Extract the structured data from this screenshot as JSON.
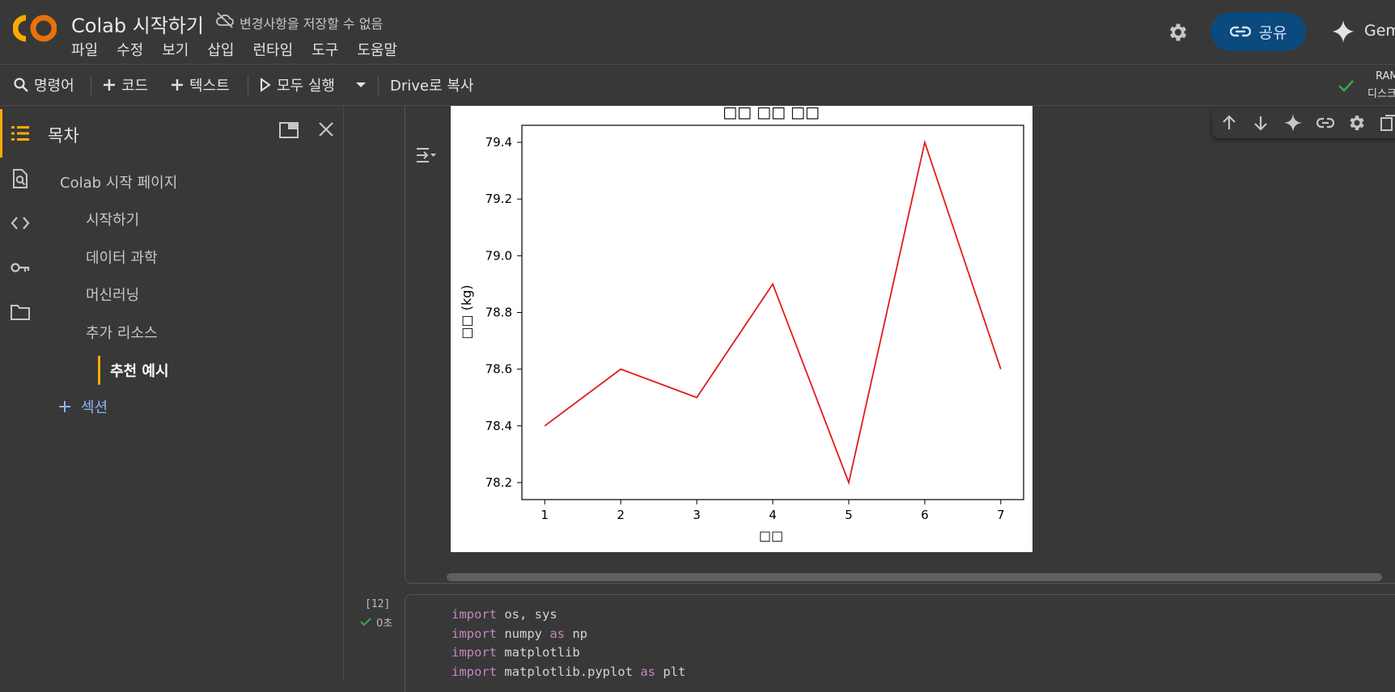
{
  "header": {
    "logo_text": "CO",
    "title": "Colab 시작하기",
    "save_status": "변경사항을 저장할 수 없음",
    "menu": [
      "파일",
      "수정",
      "보기",
      "삽입",
      "런타임",
      "도구",
      "도움말"
    ],
    "share_label": "공유",
    "gemini_label": "Gem"
  },
  "toolbar": {
    "command_label": "명령어",
    "add_code_label": "코드",
    "add_text_label": "텍스트",
    "run_all_label": "모두 실행",
    "copy_drive_label": "Drive로 복사",
    "ram_label": "RAM",
    "disk_label": "디스크"
  },
  "sidebar": {
    "title": "목차",
    "items": [
      {
        "label": "Colab 시작 페이지",
        "level": 1
      },
      {
        "label": "시작하기",
        "level": 2
      },
      {
        "label": "데이터 과학",
        "level": 2
      },
      {
        "label": "머신러닝",
        "level": 2
      },
      {
        "label": "추가 리소스",
        "level": 2
      },
      {
        "label": "추천 예시",
        "level": 3,
        "active": true
      }
    ],
    "add_section_label": "섹션"
  },
  "cells": {
    "code_exec_count": "[12]",
    "code_exec_time": "0초",
    "code_lines": [
      [
        {
          "kw": "import"
        },
        {
          "t": " os, sys"
        }
      ],
      [
        {
          "kw": "import"
        },
        {
          "t": " numpy "
        },
        {
          "kw": "as"
        },
        {
          "t": " np"
        }
      ],
      [
        {
          "kw": "import"
        },
        {
          "t": " matplotlib"
        }
      ],
      [
        {
          "kw": "import"
        },
        {
          "t": " matplotlib.pyplot "
        },
        {
          "kw": "as"
        },
        {
          "t": " plt"
        }
      ]
    ]
  },
  "colors": {
    "accent": "#f9ab00",
    "line": "#e41a1c",
    "share_bg": "#0b4a7c"
  },
  "chart_data": {
    "type": "line",
    "title": "□□ □□ □□",
    "xlabel": "□□",
    "ylabel": "□□ (kg)",
    "x": [
      1,
      2,
      3,
      4,
      5,
      6,
      7
    ],
    "series": [
      {
        "values": [
          78.4,
          78.6,
          78.5,
          78.9,
          78.2,
          79.4,
          78.6
        ]
      }
    ],
    "xlim": [
      0.7,
      7.3
    ],
    "ylim": [
      78.14,
      79.46
    ],
    "xticks": [
      "1",
      "2",
      "3",
      "4",
      "5",
      "6",
      "7"
    ],
    "yticks": [
      "78.2",
      "78.4",
      "78.6",
      "78.8",
      "79.0",
      "79.2",
      "79.4"
    ],
    "grid": false
  }
}
